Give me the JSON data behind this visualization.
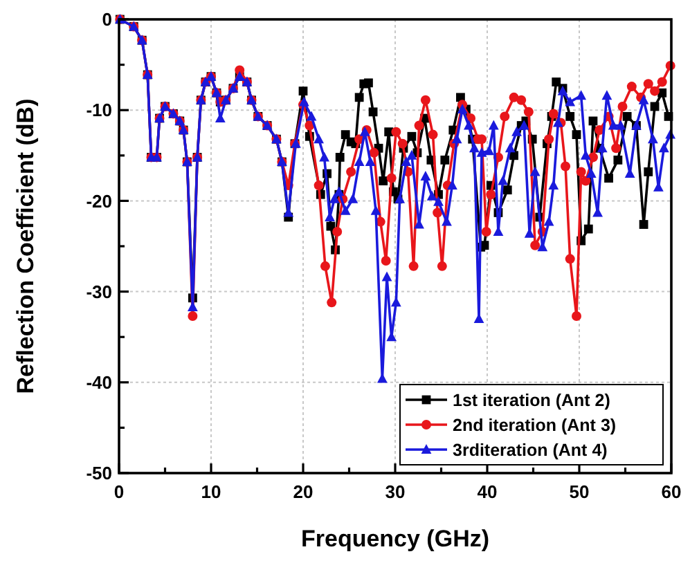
{
  "chart_data": {
    "type": "line",
    "xlabel": "Frequency (GHz)",
    "ylabel": "Reflection Coefficient (dB)",
    "xlim": [
      0,
      60
    ],
    "ylim": [
      -50,
      0
    ],
    "xticks": [
      0,
      {
        "value": 5,
        "label": null
      },
      10,
      {
        "value": 15,
        "label": null
      },
      20,
      {
        "value": 25,
        "label": null
      },
      30,
      {
        "value": 35,
        "label": null
      },
      40,
      {
        "value": 45,
        "label": null
      },
      50,
      {
        "value": 55,
        "label": null
      },
      60
    ],
    "yticks": [
      -50,
      {
        "value": -45,
        "label": null
      },
      -40,
      {
        "value": -35,
        "label": null
      },
      -30,
      {
        "value": -25,
        "label": null
      },
      -20,
      {
        "value": -15,
        "label": null
      },
      -10,
      {
        "value": -5,
        "label": null
      },
      0
    ],
    "grid": true,
    "legend": "bottom right",
    "line_style": "solid",
    "series": [
      {
        "name": "1st iteration (Ant 2)",
        "color": "#000000",
        "marker": "square",
        "x": [
          0.1,
          1.6,
          2.5,
          3.1,
          3.5,
          4.1,
          4.4,
          5.0,
          5.9,
          6.6,
          7.0,
          7.4,
          8.0,
          8.5,
          8.9,
          9.4,
          10.0,
          10.6,
          11.0,
          11.6,
          12.4,
          13.1,
          13.9,
          14.4,
          15.1,
          16.1,
          17.1,
          17.7,
          18.4,
          19.1,
          20.0,
          20.7,
          21.9,
          22.6,
          23.0,
          23.5,
          23.9,
          24.0,
          24.6,
          25.2,
          25.7,
          26.1,
          26.6,
          27.1,
          27.6,
          28.2,
          28.7,
          29.3,
          29.8,
          30.3,
          30.9,
          31.8,
          32.4,
          33.2,
          33.9,
          34.7,
          35.4,
          36.3,
          37.1,
          37.7,
          38.4,
          39.3,
          39.7,
          40.4,
          41.2,
          42.2,
          42.9,
          43.7,
          44.2,
          44.9,
          45.7,
          46.5,
          47.0,
          47.5,
          48.2,
          49.0,
          49.7,
          50.2,
          51.0,
          51.5,
          52.2,
          53.2,
          54.2,
          55.2,
          56.2,
          57.0,
          57.5,
          58.2,
          59.0,
          59.7
        ],
        "values": [
          0,
          -0.8,
          -2.3,
          -6.1,
          -15.2,
          -15.2,
          -10.9,
          -9.6,
          -10.4,
          -11.2,
          -12.2,
          -15.7,
          -30.7,
          -15.2,
          -8.9,
          -6.9,
          -6.3,
          -8.1,
          -9.1,
          -8.9,
          -7.6,
          -6.3,
          -6.9,
          -8.9,
          -10.7,
          -11.7,
          -13.2,
          -15.7,
          -21.8,
          -13.7,
          -7.9,
          -12.9,
          -19.3,
          -17,
          -22.8,
          -25.4,
          -19.3,
          -15.2,
          -12.7,
          -13.5,
          -13.7,
          -8.6,
          -7.1,
          -7.0,
          -10.2,
          -14.2,
          -17.8,
          -12.4,
          -19,
          -19.8,
          -14.2,
          -12.9,
          -14.7,
          -10.9,
          -15.5,
          -19.3,
          -15.5,
          -12.2,
          -8.6,
          -9.9,
          -13.2,
          -25.1,
          -24.9,
          -18.3,
          -21.3,
          -18.8,
          -15,
          -11.7,
          -11.2,
          -13.2,
          -21.8,
          -13.7,
          -10.7,
          -6.9,
          -7.6,
          -10.7,
          -12.7,
          -24.4,
          -23.1,
          -11.2,
          -14.2,
          -17.5,
          -15.5,
          -10.7,
          -11.7,
          -22.6,
          -16.8,
          -9.6,
          -8.1,
          -10.7
        ]
      },
      {
        "name": "2nd iteration (Ant 3)",
        "color": "#e8161b",
        "marker": "circle",
        "x": [
          0.1,
          1.6,
          2.5,
          3.1,
          3.5,
          4.1,
          4.4,
          5.0,
          5.9,
          6.6,
          7.0,
          7.4,
          8.0,
          8.5,
          8.9,
          9.4,
          10.0,
          10.6,
          11.0,
          11.6,
          12.4,
          13.1,
          13.9,
          14.4,
          15.1,
          16.1,
          17.1,
          17.7,
          18.4,
          19.1,
          20.0,
          20.7,
          21.7,
          22.4,
          23.1,
          23.7,
          24.3,
          25.2,
          26.1,
          26.9,
          27.7,
          28.4,
          29.0,
          29.6,
          30.1,
          30.8,
          31.4,
          32.0,
          32.6,
          33.3,
          34.1,
          34.6,
          35.1,
          35.7,
          36.4,
          37.3,
          38.2,
          39.0,
          39.4,
          39.9,
          40.4,
          41.2,
          41.9,
          42.9,
          43.7,
          44.5,
          45.2,
          46.0,
          46.7,
          47.2,
          48.0,
          48.5,
          49.0,
          49.7,
          50.2,
          50.7,
          51.5,
          52.2,
          53.2,
          54.0,
          54.7,
          55.7,
          56.7,
          57.5,
          58.2,
          59.0,
          59.9
        ],
        "values": [
          0,
          -0.8,
          -2.3,
          -6.1,
          -15.2,
          -15.2,
          -10.9,
          -9.6,
          -10.4,
          -11.2,
          -12.2,
          -15.7,
          -32.7,
          -15.2,
          -8.9,
          -6.9,
          -6.3,
          -8.1,
          -9.1,
          -8.9,
          -7.6,
          -5.6,
          -6.9,
          -8.9,
          -10.7,
          -11.7,
          -13.2,
          -15.7,
          -18.3,
          -13.7,
          -9.4,
          -11.7,
          -18.3,
          -27.2,
          -31.2,
          -23.4,
          -19.8,
          -16.8,
          -13.2,
          -12.2,
          -14.7,
          -22.3,
          -26.6,
          -17.5,
          -12.4,
          -13.7,
          -16.8,
          -27.2,
          -11.7,
          -8.9,
          -12.7,
          -21.3,
          -27.2,
          -18.3,
          -13.7,
          -9.4,
          -10.9,
          -13.2,
          -13.2,
          -23.4,
          -19.3,
          -15.2,
          -10.7,
          -8.6,
          -8.9,
          -10.2,
          -24.9,
          -23.4,
          -13.2,
          -10.4,
          -11.4,
          -16.2,
          -26.4,
          -32.7,
          -16.8,
          -17.8,
          -15.2,
          -12.2,
          -10.7,
          -14.2,
          -9.6,
          -7.4,
          -8.6,
          -7.1,
          -7.9,
          -6.9,
          -5.1
        ]
      },
      {
        "name": "3rditeration (Ant 4)",
        "color": "#1a1adc",
        "marker": "triangle",
        "x": [
          0.1,
          1.6,
          2.5,
          3.1,
          3.5,
          4.1,
          4.4,
          5.0,
          5.9,
          6.6,
          7.0,
          7.4,
          8.0,
          8.5,
          8.9,
          9.4,
          10.0,
          10.6,
          11.0,
          11.6,
          12.4,
          13.1,
          13.9,
          14.4,
          15.1,
          16.1,
          17.1,
          17.7,
          18.4,
          19.2,
          20.1,
          20.9,
          21.7,
          22.3,
          22.9,
          23.4,
          23.9,
          24.6,
          25.4,
          26.1,
          26.7,
          27.3,
          27.9,
          28.6,
          29.1,
          29.6,
          30.1,
          30.5,
          31.2,
          31.8,
          32.6,
          33.3,
          34.0,
          34.7,
          35.6,
          36.2,
          36.7,
          37.3,
          38.0,
          38.6,
          39.1,
          39.4,
          40.2,
          40.7,
          41.2,
          41.7,
          42.5,
          43.2,
          44.0,
          44.6,
          45.2,
          46.0,
          46.7,
          47.2,
          47.7,
          48.2,
          49.0,
          50.2,
          50.7,
          51.3,
          52.0,
          52.5,
          53.0,
          53.7,
          54.5,
          55.5,
          56.2,
          57.0,
          58.0,
          58.6,
          59.2,
          59.9
        ],
        "values": [
          0,
          -0.8,
          -2.3,
          -6.1,
          -15.2,
          -15.2,
          -10.9,
          -9.6,
          -10.4,
          -11.2,
          -12.2,
          -15.7,
          -31.7,
          -15.2,
          -8.9,
          -6.9,
          -6.3,
          -8.1,
          -10.9,
          -8.9,
          -7.6,
          -6.3,
          -6.9,
          -8.9,
          -10.7,
          -11.7,
          -13.2,
          -15.7,
          -21.3,
          -13.7,
          -9.1,
          -10.7,
          -13.2,
          -15.2,
          -21.8,
          -19.8,
          -19,
          -21.1,
          -19.8,
          -15.7,
          -12.4,
          -15.7,
          -21.1,
          -39.6,
          -28.4,
          -35,
          -31.2,
          -19.8,
          -15.7,
          -15,
          -22.6,
          -17.3,
          -19.5,
          -20.1,
          -22.3,
          -18.3,
          -13.2,
          -9.9,
          -11.7,
          -14.2,
          -33,
          -14.7,
          -14.5,
          -11.7,
          -23.4,
          -17.8,
          -14.2,
          -12.4,
          -11.7,
          -23.6,
          -16.8,
          -25.1,
          -22.3,
          -18.3,
          -11.4,
          -7.9,
          -9.1,
          -8.4,
          -15,
          -17,
          -21.3,
          -14.2,
          -8.4,
          -11.7,
          -11.7,
          -17,
          -11.7,
          -8.9,
          -13.2,
          -18.5,
          -14.2,
          -12.7
        ]
      }
    ]
  }
}
